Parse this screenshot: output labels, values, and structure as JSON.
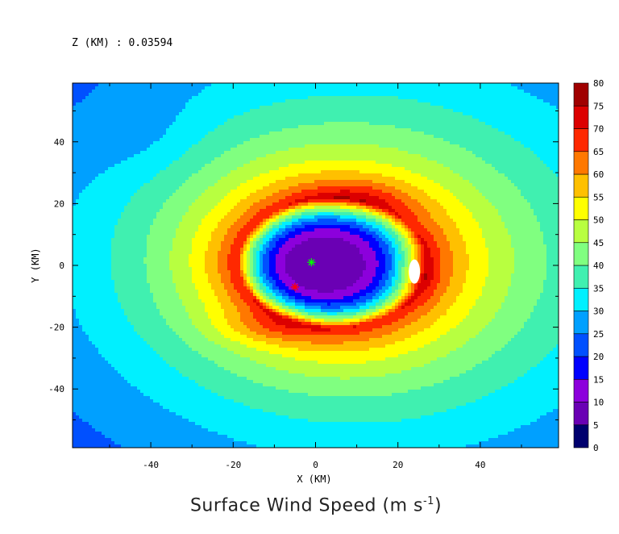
{
  "header": {
    "z_label": "Z (KM) : 0.03594"
  },
  "chart_data": {
    "type": "heatmap",
    "title": "Surface Wind Speed (m s",
    "title_superscript": "-1",
    "title_suffix": ")",
    "xlabel": "X (KM)",
    "ylabel": "Y (KM)",
    "xlim": [
      -59,
      59
    ],
    "ylim": [
      -59,
      59
    ],
    "x_ticks": [
      -40,
      -20,
      0,
      20,
      40
    ],
    "y_ticks": [
      -40,
      -20,
      0,
      20,
      40
    ],
    "colorbar": {
      "levels": [
        0,
        5,
        10,
        15,
        20,
        25,
        30,
        35,
        40,
        45,
        50,
        55,
        60,
        65,
        70,
        75,
        80
      ],
      "colors": [
        "#00006e",
        "#6a00b4",
        "#8c00dc",
        "#0000ff",
        "#0050ff",
        "#00a0ff",
        "#00f0ff",
        "#40f0b0",
        "#80ff80",
        "#b8ff40",
        "#ffff00",
        "#ffc000",
        "#ff7800",
        "#ff2800",
        "#dc0000",
        "#a00000"
      ]
    },
    "markers": [
      {
        "name": "green-star",
        "x": -1,
        "y": 1,
        "color": "#00ff00"
      },
      {
        "name": "red-star",
        "x": -5,
        "y": -7,
        "color": "#ff0000"
      }
    ],
    "max_region": {
      "x": 24,
      "y": -2,
      "color": "#ffffff"
    }
  }
}
